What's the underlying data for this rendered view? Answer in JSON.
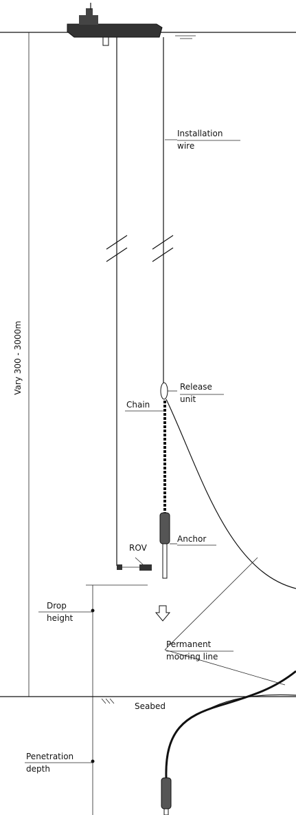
{
  "labels": {
    "installation_wire": [
      "Installation",
      "wire"
    ],
    "water_depth": "Vary 300 - 3000m",
    "release_unit": [
      "Release",
      "unit"
    ],
    "chain": "Chain",
    "anchor": "Anchor",
    "rov": "ROV",
    "drop_height": [
      "Drop",
      "height"
    ],
    "permanent_mooring_line": [
      "Permanent",
      "mooring line"
    ],
    "seabed": "Seabed",
    "penetration_depth": [
      "Penetration",
      "depth"
    ]
  }
}
